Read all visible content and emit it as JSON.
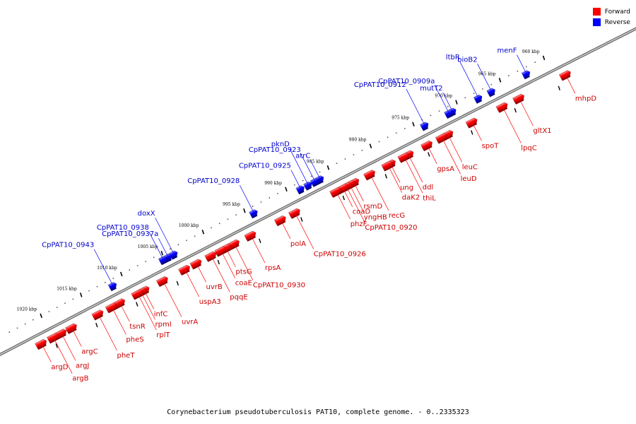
{
  "legend": {
    "forward": "Forward",
    "reverse": "Reverse",
    "forward_color": "#ff0000",
    "reverse_color": "#0000ff"
  },
  "caption": "Corynebacterium pseudotuberculosis PAT10, complete genome. - 0..2335323",
  "ticks": [
    {
      "label": "960 kbp",
      "pos": 960
    },
    {
      "label": "965 kbp",
      "pos": 965
    },
    {
      "label": "970 kbp",
      "pos": 970
    },
    {
      "label": "975 kbp",
      "pos": 975
    },
    {
      "label": "980 kbp",
      "pos": 980
    },
    {
      "label": "985 kbp",
      "pos": 985
    },
    {
      "label": "990 kbp",
      "pos": 990
    },
    {
      "label": "995 kbp",
      "pos": 995
    },
    {
      "label": "1000 kbp",
      "pos": 1000
    },
    {
      "label": "1005 kbp",
      "pos": 1005
    },
    {
      "label": "1010 kbp",
      "pos": 1010
    },
    {
      "label": "1015 kbp",
      "pos": 1015
    },
    {
      "label": "1020 kbp",
      "pos": 1020
    }
  ],
  "reverse_genes": [
    {
      "name": "menF",
      "pos": 962.3
    },
    {
      "name": "bioB2",
      "pos": 966.3
    },
    {
      "name": "ltbR",
      "pos": 967.8
    },
    {
      "name": "mutT2",
      "pos": 970.8
    },
    {
      "name": "CpPAT10_0909a",
      "pos": 971.2
    },
    {
      "name": "CpPAT10_0912",
      "pos": 974.0
    },
    {
      "name": "atrC",
      "pos": 986.3
    },
    {
      "name": "CpPAT10_0923",
      "pos": 986.9
    },
    {
      "name": "pknD",
      "pos": 987.7
    },
    {
      "name": "CpPAT10_0925",
      "pos": 988.6
    },
    {
      "name": "CpPAT10_0928",
      "pos": 994.2
    },
    {
      "name": "doxX",
      "pos": 1003.9
    },
    {
      "name": "CpPAT10_0937a",
      "pos": 1004.6
    },
    {
      "name": "CpPAT10_0938",
      "pos": 1005.2
    },
    {
      "name": "CpPAT10_0943",
      "pos": 1011.4
    }
  ],
  "forward_genes": [
    {
      "name": "mhpD",
      "pos": 958.8
    },
    {
      "name": "gltX1",
      "pos": 964.1
    },
    {
      "name": "lpqC",
      "pos": 966.0
    },
    {
      "name": "spoT",
      "pos": 969.5
    },
    {
      "name": "leuC",
      "pos": 972.3
    },
    {
      "name": "leuD",
      "pos": 973.0
    },
    {
      "name": "gpsA",
      "pos": 974.7
    },
    {
      "name": "ddl",
      "pos": 976.9
    },
    {
      "name": "thiL",
      "pos": 977.4
    },
    {
      "name": "ung",
      "pos": 979.0
    },
    {
      "name": "daK2",
      "pos": 979.3
    },
    {
      "name": "recG",
      "pos": 981.4
    },
    {
      "name": "rsmD",
      "pos": 983.3
    },
    {
      "name": "yngHB",
      "pos": 983.8
    },
    {
      "name": "CpPAT10_0920",
      "pos": 984.2
    },
    {
      "name": "coaD",
      "pos": 984.6
    },
    {
      "name": "phzF",
      "pos": 985.4
    },
    {
      "name": "CpPAT10_0926",
      "pos": 990.3
    },
    {
      "name": "polA",
      "pos": 992.0
    },
    {
      "name": "rpsA",
      "pos": 995.6
    },
    {
      "name": "CpPAT10_0930",
      "pos": 997.6
    },
    {
      "name": "ptsG",
      "pos": 998.6
    },
    {
      "name": "coaE",
      "pos": 999.2
    },
    {
      "name": "pqqE",
      "pos": 1000.4
    },
    {
      "name": "uvrB",
      "pos": 1002.2
    },
    {
      "name": "uspA3",
      "pos": 1003.6
    },
    {
      "name": "uvrA",
      "pos": 1006.3
    },
    {
      "name": "infC",
      "pos": 1008.6
    },
    {
      "name": "rpmI",
      "pos": 1009.0
    },
    {
      "name": "rplT",
      "pos": 1009.4
    },
    {
      "name": "tsnR",
      "pos": 1011.6
    },
    {
      "name": "pheS",
      "pos": 1012.6
    },
    {
      "name": "pheT",
      "pos": 1014.3
    },
    {
      "name": "argC",
      "pos": 1017.6
    },
    {
      "name": "argJ",
      "pos": 1018.9
    },
    {
      "name": "argB",
      "pos": 1019.9
    },
    {
      "name": "argD",
      "pos": 1021.4
    }
  ]
}
